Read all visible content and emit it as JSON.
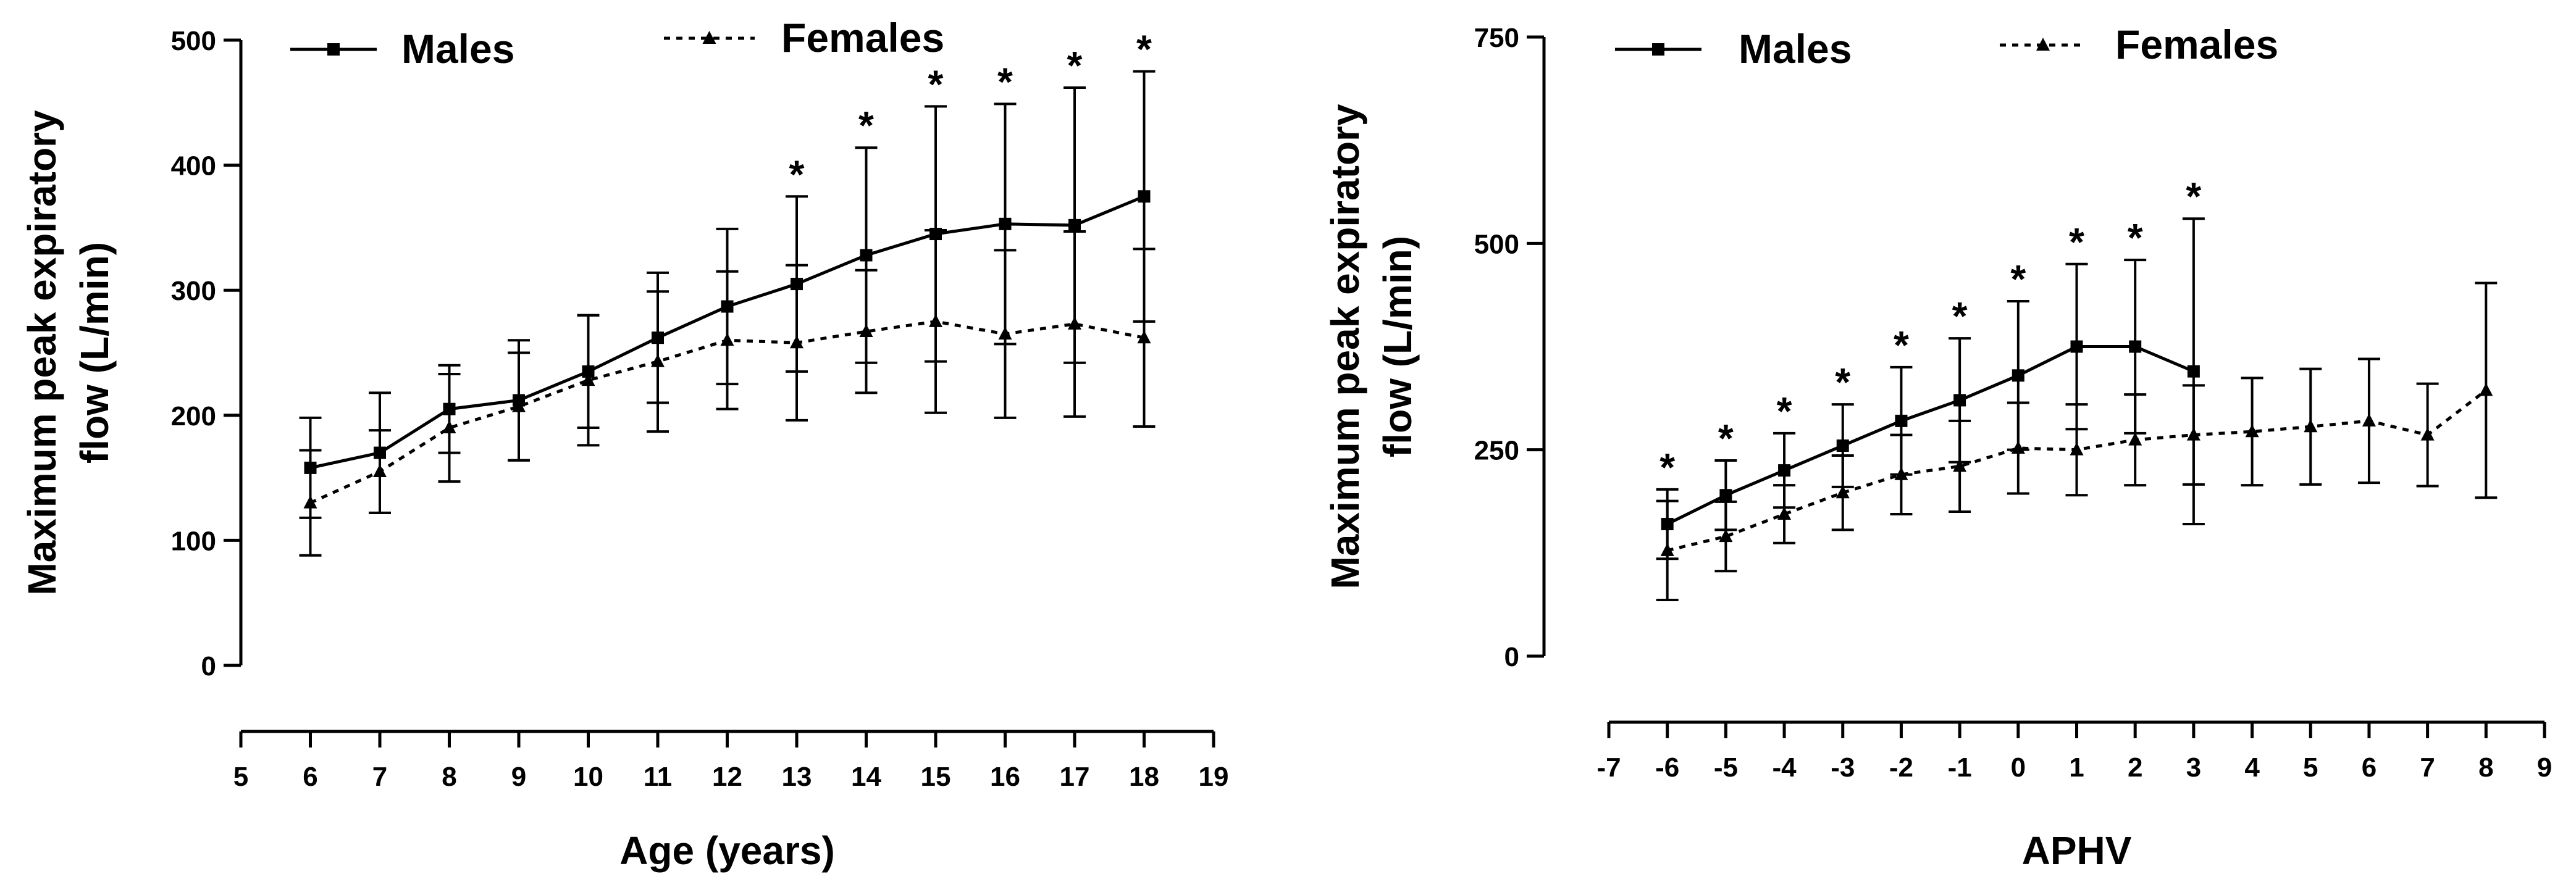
{
  "chart_data": [
    {
      "type": "line",
      "ylabel": "Maximum peak expiratory flow (L/min)",
      "xlabel": "Age (years)",
      "xlim": [
        5,
        19
      ],
      "ylim": [
        0,
        500
      ],
      "xticks": [
        5,
        6,
        7,
        8,
        9,
        10,
        11,
        12,
        13,
        14,
        15,
        16,
        17,
        18,
        19
      ],
      "yticks": [
        0,
        100,
        200,
        300,
        400,
        500
      ],
      "legend": "top",
      "significance_marker": "*",
      "significance_x": [
        13,
        14,
        15,
        16,
        17,
        18
      ],
      "series": [
        {
          "name": "Males",
          "marker": "square",
          "line_style": "solid",
          "x": [
            6,
            7,
            8,
            9,
            10,
            11,
            12,
            13,
            14,
            15,
            16,
            17,
            18
          ],
          "values": [
            158,
            170,
            205,
            212,
            235,
            262,
            287,
            305,
            328,
            345,
            353,
            352,
            375
          ],
          "error": [
            40,
            48,
            35,
            48,
            45,
            52,
            62,
            70,
            86,
            102,
            96,
            110,
            100
          ]
        },
        {
          "name": "Females",
          "marker": "triangle",
          "line_style": "dotted",
          "x": [
            6,
            7,
            8,
            9,
            10,
            11,
            12,
            13,
            14,
            15,
            16,
            17,
            18
          ],
          "values": [
            130,
            155,
            190,
            207,
            228,
            243,
            260,
            258,
            267,
            275,
            265,
            273,
            262
          ],
          "error": [
            42,
            33,
            43,
            43,
            52,
            56,
            55,
            62,
            49,
            73,
            67,
            74,
            71
          ]
        }
      ]
    },
    {
      "type": "line",
      "ylabel": "Maximum peak expiratory flow (L/min)",
      "xlabel": "APHV",
      "xlim": [
        -7,
        9
      ],
      "ylim": [
        0,
        750
      ],
      "xticks": [
        -7,
        -6,
        -5,
        -4,
        -3,
        -2,
        -1,
        0,
        1,
        2,
        3,
        4,
        5,
        6,
        7,
        8,
        9
      ],
      "yticks": [
        0,
        250,
        500,
        750
      ],
      "legend": "top",
      "significance_marker": "*",
      "significance_x": [
        -6,
        -5,
        -4,
        -3,
        -2,
        -1,
        0,
        1,
        2,
        3
      ],
      "series": [
        {
          "name": "Males",
          "marker": "square",
          "line_style": "solid",
          "x": [
            -6,
            -5,
            -4,
            -3,
            -2,
            -1,
            0,
            1,
            2,
            3
          ],
          "values": [
            160,
            195,
            225,
            255,
            285,
            310,
            340,
            375,
            375,
            345
          ],
          "error": [
            42,
            42,
            45,
            50,
            65,
            75,
            90,
            100,
            105,
            185
          ]
        },
        {
          "name": "Females",
          "marker": "triangle",
          "line_style": "dotted",
          "x": [
            -6,
            -5,
            -4,
            -3,
            -2,
            -1,
            0,
            1,
            2,
            3,
            4,
            5,
            6,
            7,
            8
          ],
          "values": [
            128,
            145,
            172,
            198,
            220,
            230,
            252,
            250,
            262,
            268,
            272,
            278,
            285,
            268,
            322
          ],
          "error": [
            60,
            42,
            35,
            45,
            48,
            55,
            55,
            55,
            55,
            60,
            65,
            70,
            75,
            62,
            130
          ]
        }
      ]
    }
  ]
}
